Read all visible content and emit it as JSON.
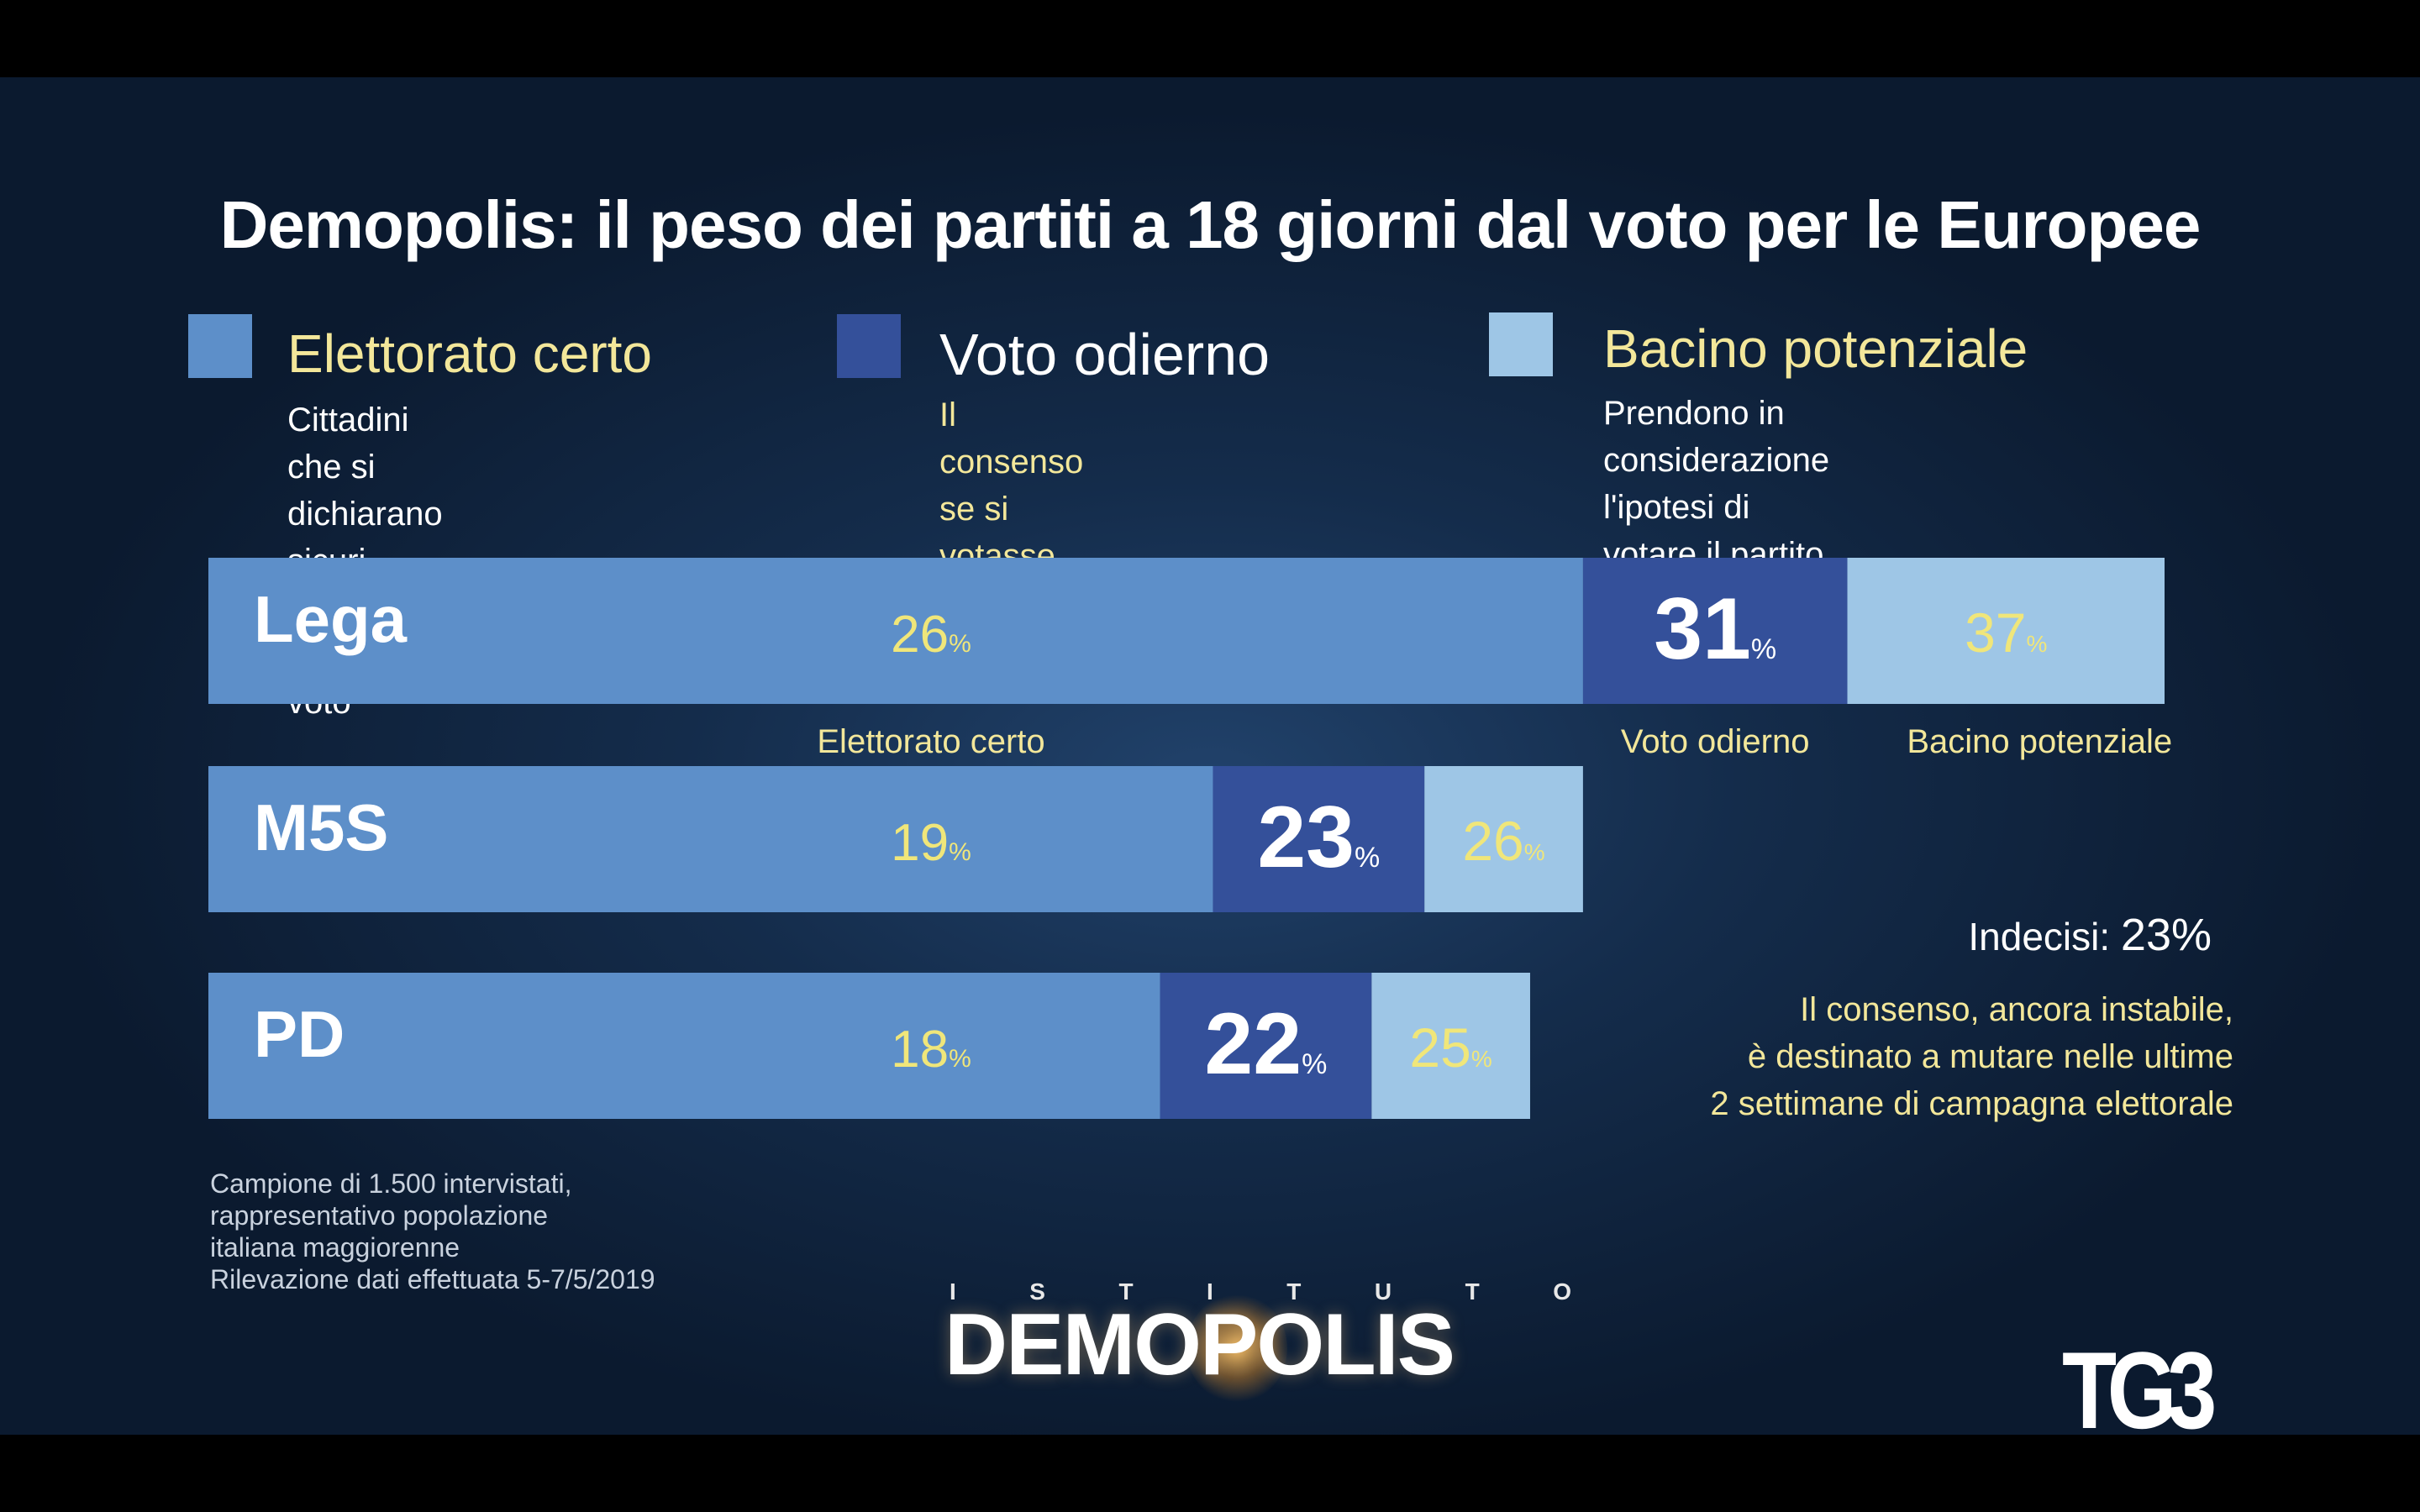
{
  "title": "Demopolis: il peso dei partiti a 18 giorni dal voto per le Europee",
  "colors": {
    "elettorato_certo": "#5d8fc9",
    "voto_odierno": "#34509a",
    "bacino_potenziale": "#9ec6e6",
    "label_yellow": "#f3e79a",
    "value_yellow": "#f0e67a"
  },
  "legend": [
    {
      "title": "Elettorato certo",
      "desc": "Cittadini che si dichiarano\nsicuri della scelta di voto"
    },
    {
      "title": "Voto odierno",
      "desc": "Il consenso se si\nvotasse oggi"
    },
    {
      "title": "Bacino potenziale",
      "desc": "Prendono in considerazione\nl'ipotesi di votare il partito"
    }
  ],
  "chart_data": {
    "type": "bar",
    "orientation": "horizontal",
    "stacked": "nested",
    "categories": [
      "Lega",
      "M5S",
      "PD"
    ],
    "series": [
      {
        "name": "Elettorato certo",
        "values": [
          26,
          19,
          18
        ]
      },
      {
        "name": "Voto odierno",
        "values": [
          31,
          23,
          22
        ]
      },
      {
        "name": "Bacino potenziale",
        "values": [
          37,
          26,
          25
        ]
      }
    ],
    "unit": "%",
    "value_labels": [
      "Elettorato certo",
      "Voto odierno",
      "Bacino potenziale"
    ]
  },
  "notes": {
    "indecisi_label": "Indecisi:",
    "indecisi_value": "23%",
    "text": "Il consenso, ancora instabile,\nè destinato a mutare nelle ultime\n2 settimane di campagna elettorale"
  },
  "sample_note": "Campione di 1.500 intervistati,\nrappresentativo popolazione\nitaliana maggiorenne\nRilevazione dati effettuata 5-7/5/2019",
  "logo": {
    "top_letters": [
      "I",
      "S",
      "T",
      "I",
      "T",
      "U",
      "T",
      "O"
    ],
    "name": "DEMOPOLIS"
  },
  "broadcaster": "TG3"
}
